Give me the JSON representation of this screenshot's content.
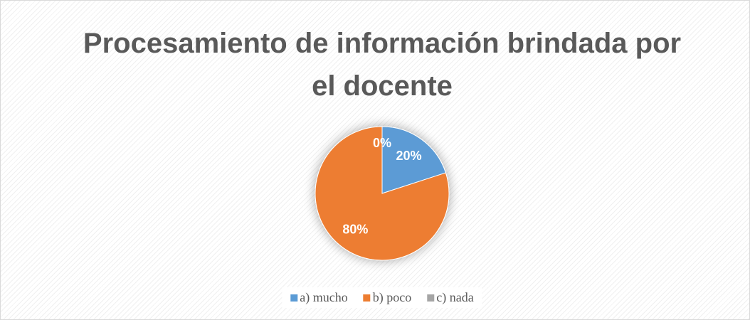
{
  "chart_data": {
    "type": "pie",
    "title": "Procesamiento de información brindada por el docente",
    "categories": [
      "a) mucho",
      "b) poco",
      "c) nada"
    ],
    "values": [
      20,
      80,
      0
    ],
    "value_labels": [
      "20%",
      "80%",
      "0%"
    ],
    "colors": [
      "#5b9bd5",
      "#ed7d31",
      "#a5a5a5"
    ],
    "legend": "bottom"
  }
}
